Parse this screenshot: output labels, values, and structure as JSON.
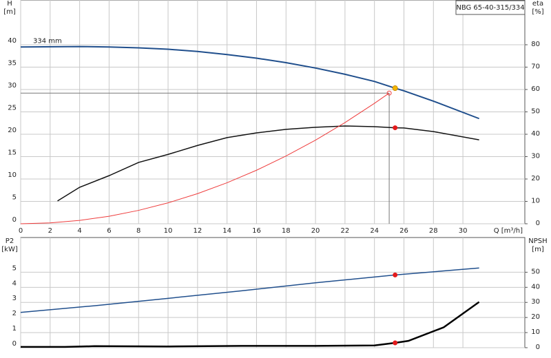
{
  "chart_data": [
    {
      "type": "line",
      "title": "NBG 65-40-315/334",
      "xlabel": "Q [m³/h]",
      "ylabel": [
        "H",
        "[m]"
      ],
      "y2label": [
        "eta",
        "[%]"
      ],
      "xlim": [
        0,
        34.2
      ],
      "xticks": [
        0,
        2,
        4,
        6,
        8,
        10,
        12,
        14,
        16,
        18,
        20,
        22,
        24,
        26,
        28,
        30
      ],
      "ylim": [
        0,
        50
      ],
      "yticks": [
        0,
        5,
        10,
        15,
        20,
        25,
        30,
        35,
        40
      ],
      "y2lim": [
        0,
        100
      ],
      "y2ticks": [
        0,
        10,
        20,
        30,
        40,
        50,
        60,
        70,
        80
      ],
      "grid": true,
      "series": [
        {
          "label": "334 mm",
          "color": "#1f4e8c",
          "width": 2,
          "axis": "y",
          "x": [
            0,
            4,
            6,
            8,
            10,
            12,
            14,
            16,
            18,
            20,
            22,
            24,
            25.4,
            26,
            28,
            31.1
          ],
          "values": [
            39.5,
            39.6,
            39.5,
            39.3,
            39.0,
            38.5,
            37.8,
            37.0,
            36.0,
            34.8,
            33.4,
            31.8,
            30.3,
            29.7,
            27.4,
            23.5
          ]
        },
        {
          "color": "#111111",
          "width": 1.5,
          "axis": "y2",
          "x": [
            2.5,
            4,
            6,
            8,
            10,
            12,
            14,
            16,
            18,
            20,
            22,
            24,
            25.4,
            26,
            28,
            31.1
          ],
          "values": [
            10.2,
            16.3,
            21.5,
            27.4,
            31.0,
            35.0,
            38.5,
            40.6,
            42.2,
            43.1,
            43.7,
            43.4,
            42.9,
            42.8,
            41.2,
            37.5
          ]
        },
        {
          "color": "#ee3b3b",
          "width": 1,
          "axis": "y",
          "x": [
            0,
            2,
            4,
            6,
            8,
            10,
            12,
            14,
            16,
            18,
            20,
            22,
            24,
            25
          ],
          "values": [
            0,
            0.19,
            0.75,
            1.68,
            2.99,
            4.67,
            6.73,
            9.16,
            11.96,
            15.14,
            18.69,
            22.61,
            26.91,
            29.2
          ]
        }
      ],
      "reference": {
        "x": 25,
        "y": 29.2
      },
      "markers": [
        {
          "x": 25.4,
          "y": 30.3,
          "axis": "y",
          "color": "#f5b800"
        },
        {
          "x": 25.4,
          "y": 42.9,
          "axis": "y2",
          "color": "#e31a1c"
        }
      ]
    },
    {
      "type": "line",
      "ylabel": [
        "P2",
        "[kW]"
      ],
      "y2label": [
        "NPSH",
        "[m]"
      ],
      "xlim": [
        0,
        34.2
      ],
      "ylim": [
        0,
        7.3
      ],
      "yticks": [
        0,
        1,
        2,
        3,
        4,
        5
      ],
      "y2lim": [
        0,
        73
      ],
      "y2ticks": [
        0,
        10,
        20,
        30,
        40,
        50
      ],
      "grid": true,
      "series": [
        {
          "color": "#1f4e8c",
          "width": 1.5,
          "axis": "y",
          "x": [
            0,
            5,
            10,
            15,
            20,
            25.4,
            31.1
          ],
          "values": [
            2.34,
            2.78,
            3.27,
            3.77,
            4.3,
            4.82,
            5.28
          ]
        },
        {
          "color": "#000000",
          "width": 2.5,
          "axis": "y2",
          "x": [
            0,
            3,
            5,
            10,
            15,
            20,
            24,
            25.4,
            26.3,
            28.7,
            31.1
          ],
          "values": [
            0.5,
            0.5,
            1.0,
            0.8,
            1.2,
            1.2,
            1.5,
            3.2,
            4.5,
            13.5,
            30.3
          ]
        }
      ],
      "markers": [
        {
          "x": 25.4,
          "y": 4.82,
          "axis": "y",
          "color": "#e31a1c"
        },
        {
          "x": 25.4,
          "y": 3.2,
          "axis": "y2",
          "color": "#e31a1c"
        }
      ]
    }
  ]
}
